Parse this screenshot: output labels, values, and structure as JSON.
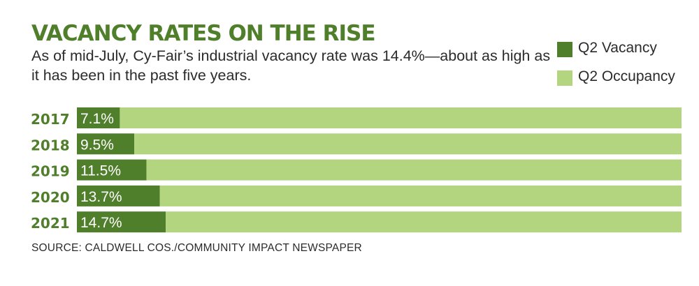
{
  "title": "VACANCY RATES ON THE RISE",
  "subtitle": "As of mid-July, Cy-Fair’s industrial vacancy rate was 14.4%—about as high as it has been in the past five years.",
  "source": "SOURCE: CALDWELL COS./COMMUNITY IMPACT NEWSPAPER",
  "colors": {
    "vacancy": "#4f7f2a",
    "occupancy": "#b4d57f",
    "title": "#4f7f2a",
    "year_label": "#4f7f2a",
    "text": "#2b2b2b"
  },
  "chart_data": {
    "type": "bar",
    "orientation": "horizontal",
    "stacked": true,
    "categories": [
      "2017",
      "2018",
      "2019",
      "2020",
      "2021"
    ],
    "series": [
      {
        "name": "Q2 Vacancy",
        "values": [
          7.1,
          9.5,
          11.5,
          13.7,
          14.7
        ],
        "labels": [
          "7.1%",
          "9.5%",
          "11.5%",
          "13.7%",
          "14.7%"
        ]
      },
      {
        "name": "Q2 Occupancy",
        "values": [
          92.9,
          90.5,
          88.5,
          86.3,
          85.3
        ]
      }
    ],
    "xlim": [
      0,
      100
    ],
    "grid": false,
    "legend": "top-right"
  }
}
